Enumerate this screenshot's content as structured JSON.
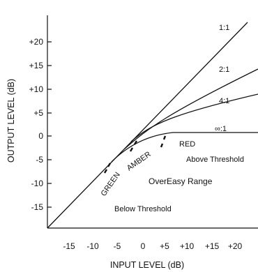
{
  "diagram": {
    "xlabel": "INPUT LEVEL (dB)",
    "ylabel": "OUTPUT LEVEL (dB)",
    "x_ticks": [
      "-15",
      "-10",
      "-5",
      "0",
      "+5",
      "+10",
      "+15",
      "+20"
    ],
    "y_ticks": [
      "+20",
      "+15",
      "+10",
      "+5",
      "0",
      "-5",
      "-10",
      "-15"
    ],
    "ratios": [
      "1:1",
      "2:1",
      "4:1",
      "∞:1"
    ],
    "zones": {
      "green": "GREEN",
      "amber": "AMBER",
      "red": "RED",
      "above": "Above Threshold",
      "below": "Below Threshold",
      "range": "OverEasy Range"
    },
    "line_color": "#111111"
  }
}
